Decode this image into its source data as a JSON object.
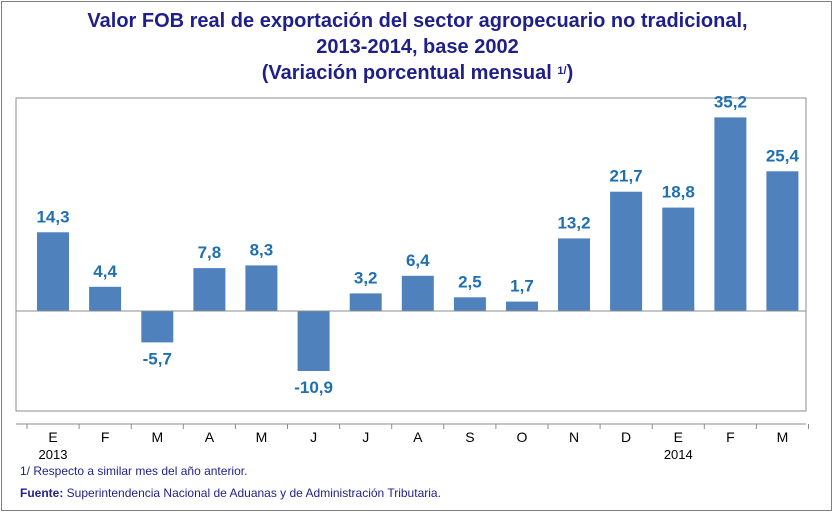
{
  "title": {
    "line1": "Valor  FOB real de exportación del sector agropecuario no tradicional,",
    "line2": "2013-2014,  base  2002",
    "line3": "(Variación porcentual mensual ",
    "line3_sup": "1/",
    "line3_end": ")"
  },
  "footnote": "1/ Respecto a similar mes del año anterior.",
  "source": {
    "label": "Fuente:",
    "text": " Superintendencia Nacional de Aduanas y de Administración Tributaria."
  },
  "colors": {
    "bar": "#4f81bd",
    "label": "#1f6fb2",
    "title": "#1f1f8a"
  },
  "chart_data": {
    "type": "bar",
    "title": "Valor FOB real de exportación del sector agropecuario no tradicional, 2013-2014, base 2002 (Variación porcentual mensual 1/)",
    "categories": [
      "E",
      "F",
      "M",
      "A",
      "M",
      "J",
      "J",
      "A",
      "S",
      "O",
      "N",
      "D",
      "E",
      "F",
      "M"
    ],
    "year_labels": [
      {
        "index": 0,
        "label": "2013"
      },
      {
        "index": 12,
        "label": "2014"
      }
    ],
    "values": [
      14.3,
      4.4,
      -5.7,
      7.8,
      8.3,
      -10.9,
      3.2,
      6.4,
      2.5,
      1.7,
      13.2,
      21.7,
      18.8,
      35.2,
      25.4
    ],
    "value_labels": [
      "14,3",
      "4,4",
      "-5,7",
      "7,8",
      "8,3",
      "-10,9",
      "3,2",
      "6,4",
      "2,5",
      "1,7",
      "13,2",
      "21,7",
      "18,8",
      "35,2",
      "25,4"
    ],
    "xlabel": "",
    "ylabel": "",
    "ylim": [
      -20,
      40
    ],
    "grid": false,
    "legend": "none"
  }
}
